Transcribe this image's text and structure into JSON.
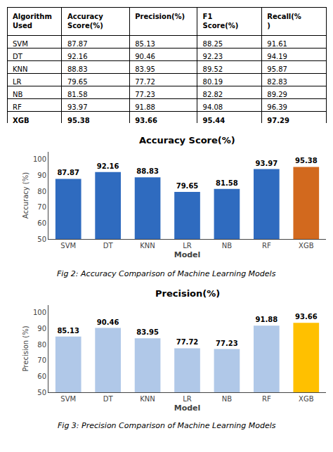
{
  "chart_data": [
    {
      "type": "table",
      "headers": [
        "Algorithm\nUsed",
        "Accuracy\nScore(%)",
        "Precision(%)",
        "F1\nScore(%)",
        "Recall(%\n)"
      ],
      "rows": [
        [
          "SVM",
          87.87,
          85.13,
          88.25,
          91.61
        ],
        [
          "DT",
          92.16,
          90.46,
          92.23,
          94.19
        ],
        [
          "KNN",
          88.83,
          83.95,
          89.52,
          95.87
        ],
        [
          "LR",
          79.65,
          77.72,
          80.19,
          82.83
        ],
        [
          "NB",
          81.58,
          77.23,
          82.82,
          89.29
        ],
        [
          "RF",
          93.97,
          91.88,
          94.08,
          96.39
        ],
        [
          "XGB",
          95.38,
          93.66,
          95.44,
          97.29
        ]
      ]
    },
    {
      "type": "bar",
      "title": "Accuracy Score(%)",
      "xlabel": "Model",
      "ylabel": "Accuracy (%)",
      "categories": [
        "SVM",
        "DT",
        "KNN",
        "LR",
        "NB",
        "RF",
        "XGB"
      ],
      "values": [
        87.87,
        92.16,
        88.83,
        79.65,
        81.58,
        93.97,
        95.38
      ],
      "colors": [
        "#2f6bbf",
        "#2f6bbf",
        "#2f6bbf",
        "#2f6bbf",
        "#2f6bbf",
        "#2f6bbf",
        "#d2691e"
      ],
      "ylim": [
        50,
        105
      ],
      "yticks": [
        50,
        60,
        70,
        80,
        90,
        100
      ],
      "grid": false,
      "data_labels": true,
      "caption": "Fig 2: Accuracy Comparison of Machine Learning Models"
    },
    {
      "type": "bar",
      "title": "Precision(%)",
      "xlabel": "Model",
      "ylabel": "Precision (%)",
      "categories": [
        "SVM",
        "DT",
        "KNN",
        "LR",
        "NB",
        "RF",
        "XGB"
      ],
      "values": [
        85.13,
        90.46,
        83.95,
        77.72,
        77.23,
        91.88,
        93.66
      ],
      "colors": [
        "#b0c8e8",
        "#b0c8e8",
        "#b0c8e8",
        "#b0c8e8",
        "#b0c8e8",
        "#b0c8e8",
        "#ffc000"
      ],
      "ylim": [
        50,
        105
      ],
      "yticks": [
        50,
        60,
        70,
        80,
        90,
        100
      ],
      "grid": false,
      "data_labels": true,
      "caption": "Fig 3: Precision Comparison of Machine Learning Models"
    }
  ]
}
